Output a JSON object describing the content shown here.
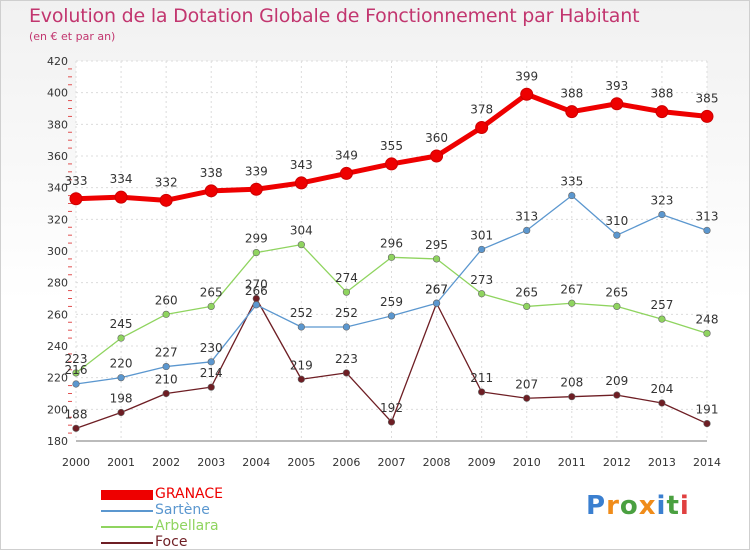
{
  "header": {
    "title": "Evolution de la Dotation Globale de Fonctionnement par Habitant",
    "subtitle": "(en € et par an)"
  },
  "logo": {
    "letters": [
      "P",
      "r",
      "o",
      "x",
      "i",
      "t",
      "i"
    ],
    "colors": [
      "#3a7fd0",
      "#f08c1a",
      "#4aa040",
      "#f08c1a",
      "#3a7fd0",
      "#4aa040",
      "#e04040"
    ]
  },
  "chart_data": {
    "type": "line",
    "title": "Evolution de la Dotation Globale de Fonctionnement par Habitant",
    "subtitle": "(en € et par an)",
    "xlabel": "",
    "ylabel": "",
    "ylim": [
      180,
      420
    ],
    "yticks": [
      180,
      200,
      220,
      240,
      260,
      280,
      300,
      320,
      340,
      360,
      380,
      400,
      420
    ],
    "grid": true,
    "legend": "bottom-left",
    "x": [
      "2000",
      "2001",
      "2002",
      "2003",
      "2004",
      "2005",
      "2006",
      "2007",
      "2008",
      "2009",
      "2010",
      "2011",
      "2012",
      "2013",
      "2014"
    ],
    "series": [
      {
        "name": "GRANACE",
        "color": "#ee0000",
        "values": [
          333,
          334,
          332,
          338,
          339,
          343,
          349,
          355,
          360,
          378,
          399,
          388,
          393,
          388,
          385
        ]
      },
      {
        "name": "Sartène",
        "color": "#5b97cf",
        "values": [
          216,
          220,
          227,
          230,
          266,
          252,
          252,
          259,
          267,
          301,
          313,
          335,
          310,
          323,
          313
        ]
      },
      {
        "name": "Arbellara",
        "color": "#8fd45f",
        "values": [
          223,
          245,
          260,
          265,
          299,
          304,
          274,
          296,
          295,
          273,
          265,
          267,
          265,
          257,
          248
        ]
      },
      {
        "name": "Foce",
        "color": "#6e1e24",
        "values": [
          188,
          198,
          210,
          214,
          270,
          219,
          223,
          192,
          267,
          211,
          207,
          208,
          209,
          204,
          191
        ]
      }
    ]
  }
}
